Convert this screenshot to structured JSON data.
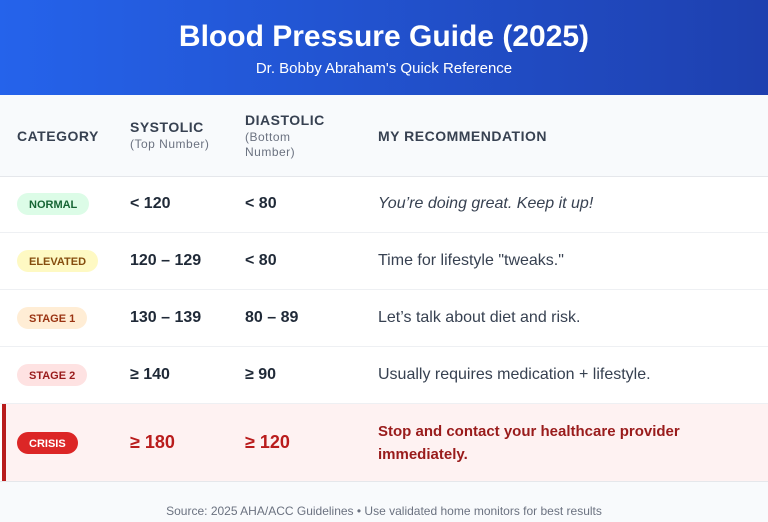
{
  "header": {
    "title": "Blood Pressure Guide (2025)",
    "subtitle": "Dr. Bobby Abraham's Quick Reference"
  },
  "table": {
    "columns": [
      {
        "label": "CATEGORY"
      },
      {
        "label": "SYSTOLIC",
        "note": "(Top Number)"
      },
      {
        "label": "DIASTOLIC",
        "note": "(Bottom Number)"
      },
      {
        "label": "MY RECOMMENDATION"
      }
    ],
    "rows": [
      [
        "NORMAL",
        "< 120",
        "< 80",
        "You’re doing great. Keep it up!"
      ],
      [
        "ELEVATED",
        "120 – 129",
        "< 80",
        "Time for lifestyle \"tweaks.\""
      ],
      [
        "STAGE 1",
        "130 – 139",
        "80 – 89",
        "Let’s talk about diet and risk."
      ],
      [
        "STAGE 2",
        "≥ 140",
        "≥ 90",
        "Usually requires medication + lifestyle."
      ],
      [
        "CRISIS",
        "≥ 180",
        "≥ 120",
        "Stop and contact your healthcare provider immediately."
      ]
    ]
  },
  "footer": {
    "source": "Source: 2025 AHA/ACC Guidelines • Use validated home monitors for best results"
  }
}
